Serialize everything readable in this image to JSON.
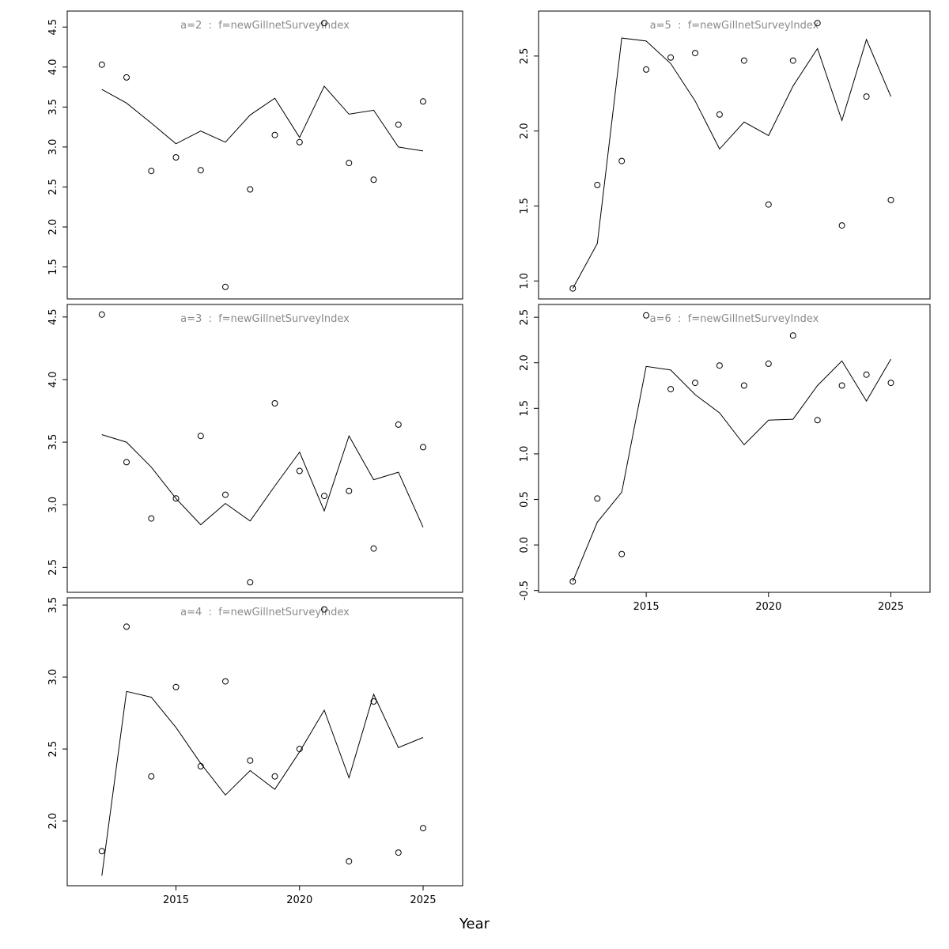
{
  "xlabel": "Year",
  "style": {
    "title_color": "#8a8a8a",
    "line_color": "#000000",
    "point_color": "#000000",
    "axis_color": "#000000",
    "background": "#ffffff"
  },
  "x_axis": {
    "lim": [
      2010.6,
      2026.6
    ],
    "ticks": [
      2015,
      2020,
      2025
    ],
    "label": "Year"
  },
  "chart_data": [
    {
      "type": "line+scatter",
      "id": "a2",
      "title": "a=2  :  f=newGillnetSurveyIndex",
      "col": 0,
      "row": 0,
      "show_x_labels": false,
      "ylim": [
        1.1,
        4.7
      ],
      "yticks": [
        1.5,
        2.0,
        2.5,
        3.0,
        3.5,
        4.0,
        4.5
      ],
      "x": [
        2012,
        2013,
        2014,
        2015,
        2016,
        2017,
        2018,
        2019,
        2020,
        2021,
        2022,
        2023,
        2024,
        2025
      ],
      "observed": [
        4.03,
        3.87,
        2.7,
        2.87,
        2.71,
        1.25,
        2.47,
        3.15,
        3.06,
        4.55,
        2.8,
        2.59,
        3.28,
        3.57
      ],
      "fitted": [
        3.72,
        3.55,
        3.3,
        3.04,
        3.2,
        3.06,
        3.4,
        3.61,
        3.12,
        3.76,
        3.41,
        3.46,
        3.0,
        2.95
      ]
    },
    {
      "type": "line+scatter",
      "id": "a3",
      "title": "a=3  :  f=newGillnetSurveyIndex",
      "col": 0,
      "row": 1,
      "show_x_labels": false,
      "ylim": [
        2.3,
        4.6
      ],
      "yticks": [
        2.5,
        3.0,
        3.5,
        4.0,
        4.5
      ],
      "x": [
        2012,
        2013,
        2014,
        2015,
        2016,
        2017,
        2018,
        2019,
        2020,
        2021,
        2022,
        2023,
        2024,
        2025
      ],
      "observed": [
        4.52,
        3.34,
        2.89,
        3.05,
        3.55,
        3.08,
        2.38,
        3.81,
        3.27,
        3.07,
        3.11,
        2.65,
        3.64,
        3.46
      ],
      "fitted": [
        3.56,
        3.5,
        3.3,
        3.05,
        2.84,
        3.01,
        2.87,
        3.15,
        3.42,
        2.95,
        3.55,
        3.2,
        3.26,
        2.82
      ]
    },
    {
      "type": "line+scatter",
      "id": "a4",
      "title": "a=4  :  f=newGillnetSurveyIndex",
      "col": 0,
      "row": 2,
      "show_x_labels": true,
      "ylim": [
        1.55,
        3.55
      ],
      "yticks": [
        2.0,
        2.5,
        3.0,
        3.5
      ],
      "x": [
        2012,
        2013,
        2014,
        2015,
        2016,
        2017,
        2018,
        2019,
        2020,
        2021,
        2022,
        2023,
        2024,
        2025
      ],
      "observed": [
        1.79,
        3.35,
        2.31,
        2.93,
        2.38,
        2.97,
        2.42,
        2.31,
        2.5,
        3.47,
        1.72,
        2.83,
        1.78,
        1.95
      ],
      "fitted": [
        1.62,
        2.9,
        2.86,
        2.65,
        2.4,
        2.18,
        2.35,
        2.22,
        2.48,
        2.77,
        2.3,
        2.88,
        2.51,
        2.58
      ]
    },
    {
      "type": "line+scatter",
      "id": "a5",
      "title": "a=5  :  f=newGillnetSurveyIndex",
      "col": 1,
      "row": 0,
      "show_x_labels": false,
      "ylim": [
        0.88,
        2.8
      ],
      "yticks": [
        1.0,
        1.5,
        2.0,
        2.5
      ],
      "x": [
        2012,
        2013,
        2014,
        2015,
        2016,
        2017,
        2018,
        2019,
        2020,
        2021,
        2022,
        2023,
        2024,
        2025
      ],
      "observed": [
        0.95,
        1.64,
        1.8,
        2.41,
        2.49,
        2.52,
        2.11,
        2.47,
        1.51,
        2.47,
        2.72,
        1.37,
        2.23,
        1.54
      ],
      "fitted": [
        0.95,
        1.25,
        2.62,
        2.6,
        2.45,
        2.2,
        1.88,
        2.06,
        1.97,
        2.3,
        2.55,
        2.07,
        2.61,
        2.23
      ]
    },
    {
      "type": "line+scatter",
      "id": "a6",
      "title": "a=6  :  f=newGillnetSurveyIndex",
      "col": 1,
      "row": 1,
      "show_x_labels": true,
      "ylim": [
        -0.52,
        2.64
      ],
      "yticks": [
        -0.5,
        0.0,
        0.5,
        1.0,
        1.5,
        2.0,
        2.5
      ],
      "x": [
        2012,
        2013,
        2014,
        2015,
        2016,
        2017,
        2018,
        2019,
        2020,
        2021,
        2022,
        2023,
        2024,
        2025
      ],
      "observed": [
        -0.4,
        0.51,
        -0.1,
        2.52,
        1.71,
        1.78,
        1.97,
        1.75,
        1.99,
        2.3,
        1.37,
        1.75,
        1.87,
        1.78
      ],
      "fitted": [
        -0.4,
        0.25,
        0.58,
        1.96,
        1.92,
        1.65,
        1.45,
        1.1,
        1.37,
        1.38,
        1.75,
        2.02,
        1.58,
        2.04
      ]
    }
  ]
}
